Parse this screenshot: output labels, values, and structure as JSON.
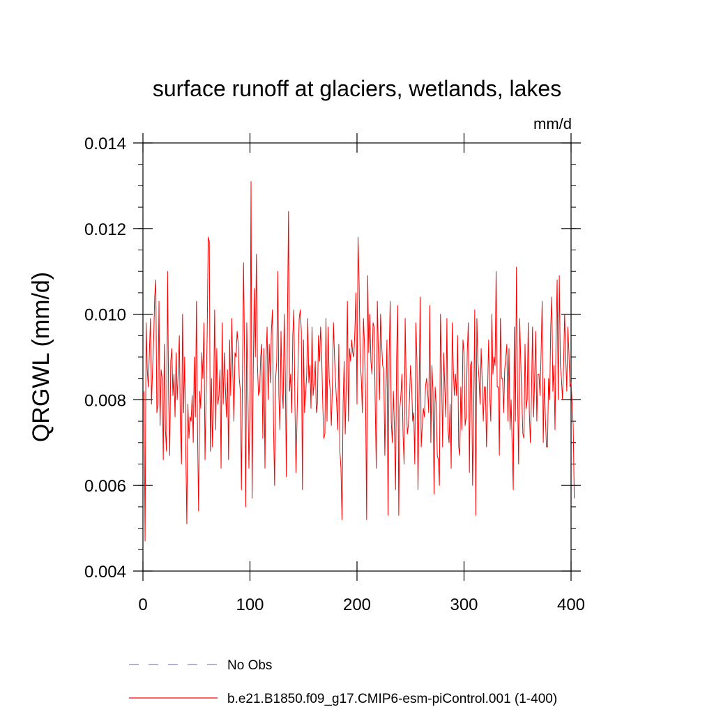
{
  "chart_data": {
    "type": "line",
    "title": "surface runoff at glaciers, wetlands, lakes",
    "units": "mm/d",
    "ylabel": "QRGWL  (mm/d)",
    "xlabel": "",
    "xlim": [
      0,
      400
    ],
    "ylim": [
      0.004,
      0.014
    ],
    "xticks": [
      0,
      100,
      200,
      300,
      400
    ],
    "xtick_labels": [
      "0",
      "100",
      "200",
      "300",
      "400"
    ],
    "yticks": [
      0.004,
      0.006,
      0.008,
      0.01,
      0.012,
      0.014
    ],
    "ytick_labels": [
      "0.004",
      "0.006",
      "0.008",
      "0.010",
      "0.012",
      "0.014"
    ],
    "grid": false,
    "legend_position": "bottom-left",
    "series": [
      {
        "name": "No Obs",
        "color": "#8080c0",
        "style": "dashed",
        "x": [],
        "values": []
      },
      {
        "name": "b.e21.B1850.f09_g17.CMIP6-esm-piControl.001 (1-400)",
        "color": "#ff0000",
        "style": "solid",
        "x_start": 1,
        "x_step": 1,
        "values": [
          0.0082,
          0.0047,
          0.0098,
          0.0087,
          0.0083,
          0.0091,
          0.0099,
          0.0079,
          0.0087,
          0.0094,
          0.0104,
          0.0108,
          0.0077,
          0.0079,
          0.0103,
          0.0074,
          0.0087,
          0.0085,
          0.0066,
          0.0093,
          0.0073,
          0.0068,
          0.011,
          0.0081,
          0.0067,
          0.0089,
          0.0092,
          0.0081,
          0.0086,
          0.0076,
          0.0091,
          0.008,
          0.0087,
          0.0095,
          0.0073,
          0.0065,
          0.01,
          0.0077,
          0.009,
          0.0069,
          0.0051,
          0.0079,
          0.0071,
          0.0076,
          0.0075,
          0.0081,
          0.007,
          0.009,
          0.0076,
          0.0103,
          0.0073,
          0.0054,
          0.0082,
          0.0078,
          0.0091,
          0.0085,
          0.0098,
          0.0066,
          0.0081,
          0.0095,
          0.0118,
          0.0117,
          0.0068,
          0.0085,
          0.0069,
          0.008,
          0.0101,
          0.0073,
          0.0092,
          0.0079,
          0.0081,
          0.0087,
          0.0064,
          0.0098,
          0.0079,
          0.0091,
          0.0083,
          0.0076,
          0.0087,
          0.0066,
          0.0094,
          0.0081,
          0.0099,
          0.0086,
          0.0075,
          0.0091,
          0.009,
          0.0096,
          0.0093,
          0.0085,
          0.0082,
          0.0059,
          0.0086,
          0.0112,
          0.0089,
          0.0055,
          0.0098,
          0.0083,
          0.0064,
          0.0077,
          0.0131,
          0.0057,
          0.0085,
          0.0106,
          0.009,
          0.0114,
          0.0088,
          0.0081,
          0.0082,
          0.009,
          0.0093,
          0.0071,
          0.0092,
          0.0064,
          0.0089,
          0.0097,
          0.008,
          0.0093,
          0.0084,
          0.0096,
          0.0101,
          0.0074,
          0.006,
          0.0085,
          0.0089,
          0.011,
          0.0081,
          0.0073,
          0.0096,
          0.0083,
          0.0078,
          0.01,
          0.0086,
          0.0062,
          0.0098,
          0.0124,
          0.0082,
          0.0086,
          0.0077,
          0.0095,
          0.0101,
          0.0079,
          0.0063,
          0.0076,
          0.0089,
          0.0099,
          0.0101,
          0.0096,
          0.0059,
          0.0094,
          0.0077,
          0.0081,
          0.0086,
          0.0099,
          0.0084,
          0.0088,
          0.0078,
          0.0097,
          0.0081,
          0.0084,
          0.0089,
          0.0077,
          0.0079,
          0.0095,
          0.0089,
          0.0097,
          0.009,
          0.0079,
          0.0071,
          0.0072,
          0.0099,
          0.0075,
          0.0097,
          0.0085,
          0.0082,
          0.0074,
          0.0083,
          0.0098,
          0.009,
          0.0084,
          0.0079,
          0.0073,
          0.0093,
          0.0068,
          0.0064,
          0.0052,
          0.0079,
          0.0089,
          0.0072,
          0.0084,
          0.0103,
          0.0075,
          0.0092,
          0.0089,
          0.0094,
          0.0091,
          0.009,
          0.0096,
          0.0105,
          0.0079,
          0.0118,
          0.0107,
          0.0089,
          0.0085,
          0.0077,
          0.0099,
          0.0093,
          0.0081,
          0.0052,
          0.0109,
          0.0091,
          0.01,
          0.0089,
          0.0086,
          0.0098,
          0.0097,
          0.0079,
          0.0064,
          0.0103,
          0.0091,
          0.008,
          0.01,
          0.0093,
          0.0088,
          0.0087,
          0.0067,
          0.0082,
          0.0094,
          0.0053,
          0.009,
          0.0103,
          0.0075,
          0.007,
          0.0082,
          0.0073,
          0.0059,
          0.009,
          0.0102,
          0.0053,
          0.0078,
          0.0081,
          0.0086,
          0.0072,
          0.0065,
          0.0099,
          0.0083,
          0.0072,
          0.0074,
          0.008,
          0.0088,
          0.0084,
          0.0075,
          0.0077,
          0.0065,
          0.0098,
          0.0089,
          0.0059,
          0.0081,
          0.0104,
          0.0069,
          0.0074,
          0.0078,
          0.0076,
          0.0083,
          0.0085,
          0.0082,
          0.0077,
          0.0102,
          0.007,
          0.0088,
          0.0082,
          0.0058,
          0.0083,
          0.0079,
          0.0067,
          0.0066,
          0.006,
          0.01,
          0.0087,
          0.0069,
          0.0091,
          0.0083,
          0.0076,
          0.0099,
          0.0073,
          0.007,
          0.0079,
          0.0064,
          0.0098,
          0.0087,
          0.0081,
          0.0086,
          0.0081,
          0.0095,
          0.0069,
          0.0067,
          0.0083,
          0.0073,
          0.0094,
          0.0091,
          0.0074,
          0.0076,
          0.0091,
          0.0098,
          0.0063,
          0.0088,
          0.0089,
          0.006,
          0.0077,
          0.0101,
          0.0053,
          0.0099,
          0.0089,
          0.0085,
          0.0079,
          0.0092,
          0.0084,
          0.0075,
          0.0083,
          0.0083,
          0.0069,
          0.0082,
          0.0094,
          0.0081,
          0.0075,
          0.01,
          0.0086,
          0.009,
          0.0088,
          0.011,
          0.0083,
          0.0083,
          0.0067,
          0.0099,
          0.0085,
          0.0085,
          0.0077,
          0.0087,
          0.009,
          0.0093,
          0.0075,
          0.0092,
          0.0073,
          0.008,
          0.0069,
          0.0059,
          0.0097,
          0.0075,
          0.0111,
          0.0082,
          0.0065,
          0.0099,
          0.0089,
          0.008,
          0.0072,
          0.0071,
          0.0093,
          0.0078,
          0.008,
          0.0098,
          0.0077,
          0.007,
          0.0081,
          0.0097,
          0.0076,
          0.0085,
          0.0096,
          0.0075,
          0.0086,
          0.0086,
          0.0081,
          0.0091,
          0.0103,
          0.007,
          0.0085,
          0.0076,
          0.0069,
          0.0069,
          0.0085,
          0.008,
          0.0097,
          0.0104,
          0.0082,
          0.0088,
          0.0073,
          0.0095,
          0.0108,
          0.008,
          0.0109,
          0.0088,
          0.0085,
          0.008,
          0.0088,
          0.01,
          0.009,
          0.0082,
          0.0097,
          0.0091,
          0.0083,
          0.0084,
          0.0079,
          0.0074,
          0.0057
        ]
      }
    ]
  }
}
